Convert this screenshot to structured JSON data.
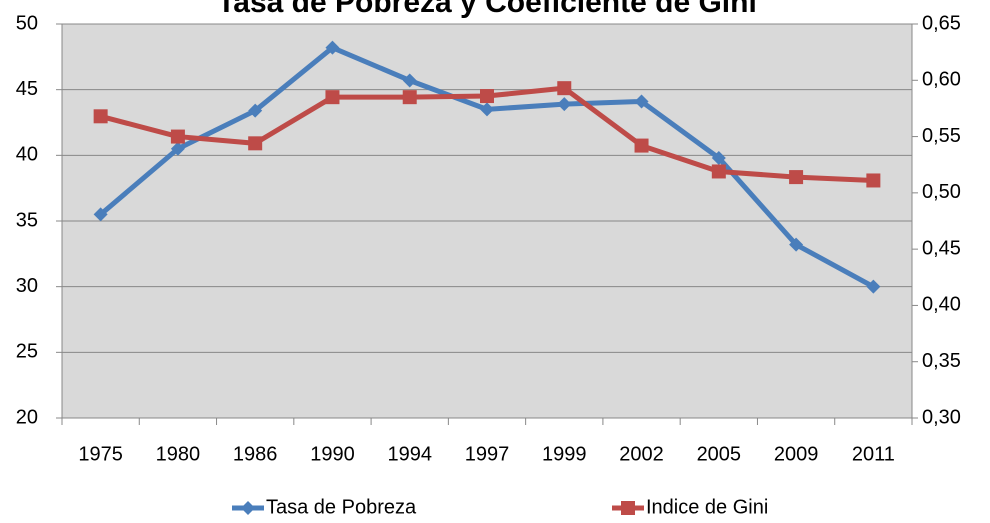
{
  "chart_data": {
    "type": "line",
    "title": "Tasa de Pobreza y Coeficiente de Gini",
    "categories": [
      "1975",
      "1980",
      "1986",
      "1990",
      "1994",
      "1997",
      "1999",
      "2002",
      "2005",
      "2009",
      "2011"
    ],
    "series": [
      {
        "name": "Tasa de Pobreza",
        "color": "#4a7ebb",
        "marker": "diamond",
        "values": [
          35.5,
          40.5,
          43.4,
          48.2,
          45.7,
          43.5,
          43.9,
          44.1,
          39.8,
          33.2,
          30.0
        ]
      },
      {
        "name": "Indice de Gini",
        "color": "#be4b48",
        "marker": "square",
        "axis": "y2",
        "values": [
          0.568,
          0.55,
          0.544,
          0.585,
          0.585,
          0.586,
          0.593,
          0.542,
          0.519,
          0.514,
          0.511
        ]
      }
    ],
    "ylim": [
      20,
      50
    ],
    "yticks": [
      20,
      25,
      30,
      35,
      40,
      45,
      50
    ],
    "y2lim": [
      0.3,
      0.65
    ],
    "y2ticks": [
      {
        "value": 0.3,
        "label": "0,30"
      },
      {
        "value": 0.35,
        "label": "0,35"
      },
      {
        "value": 0.4,
        "label": "0,40"
      },
      {
        "value": 0.45,
        "label": "0,45"
      },
      {
        "value": 0.5,
        "label": "0,50"
      },
      {
        "value": 0.55,
        "label": "0,55"
      },
      {
        "value": 0.6,
        "label": "0,60"
      },
      {
        "value": 0.65,
        "label": "0,65"
      }
    ],
    "grid": true,
    "legend": "bottom",
    "plot_background": "#d9d9d9"
  }
}
